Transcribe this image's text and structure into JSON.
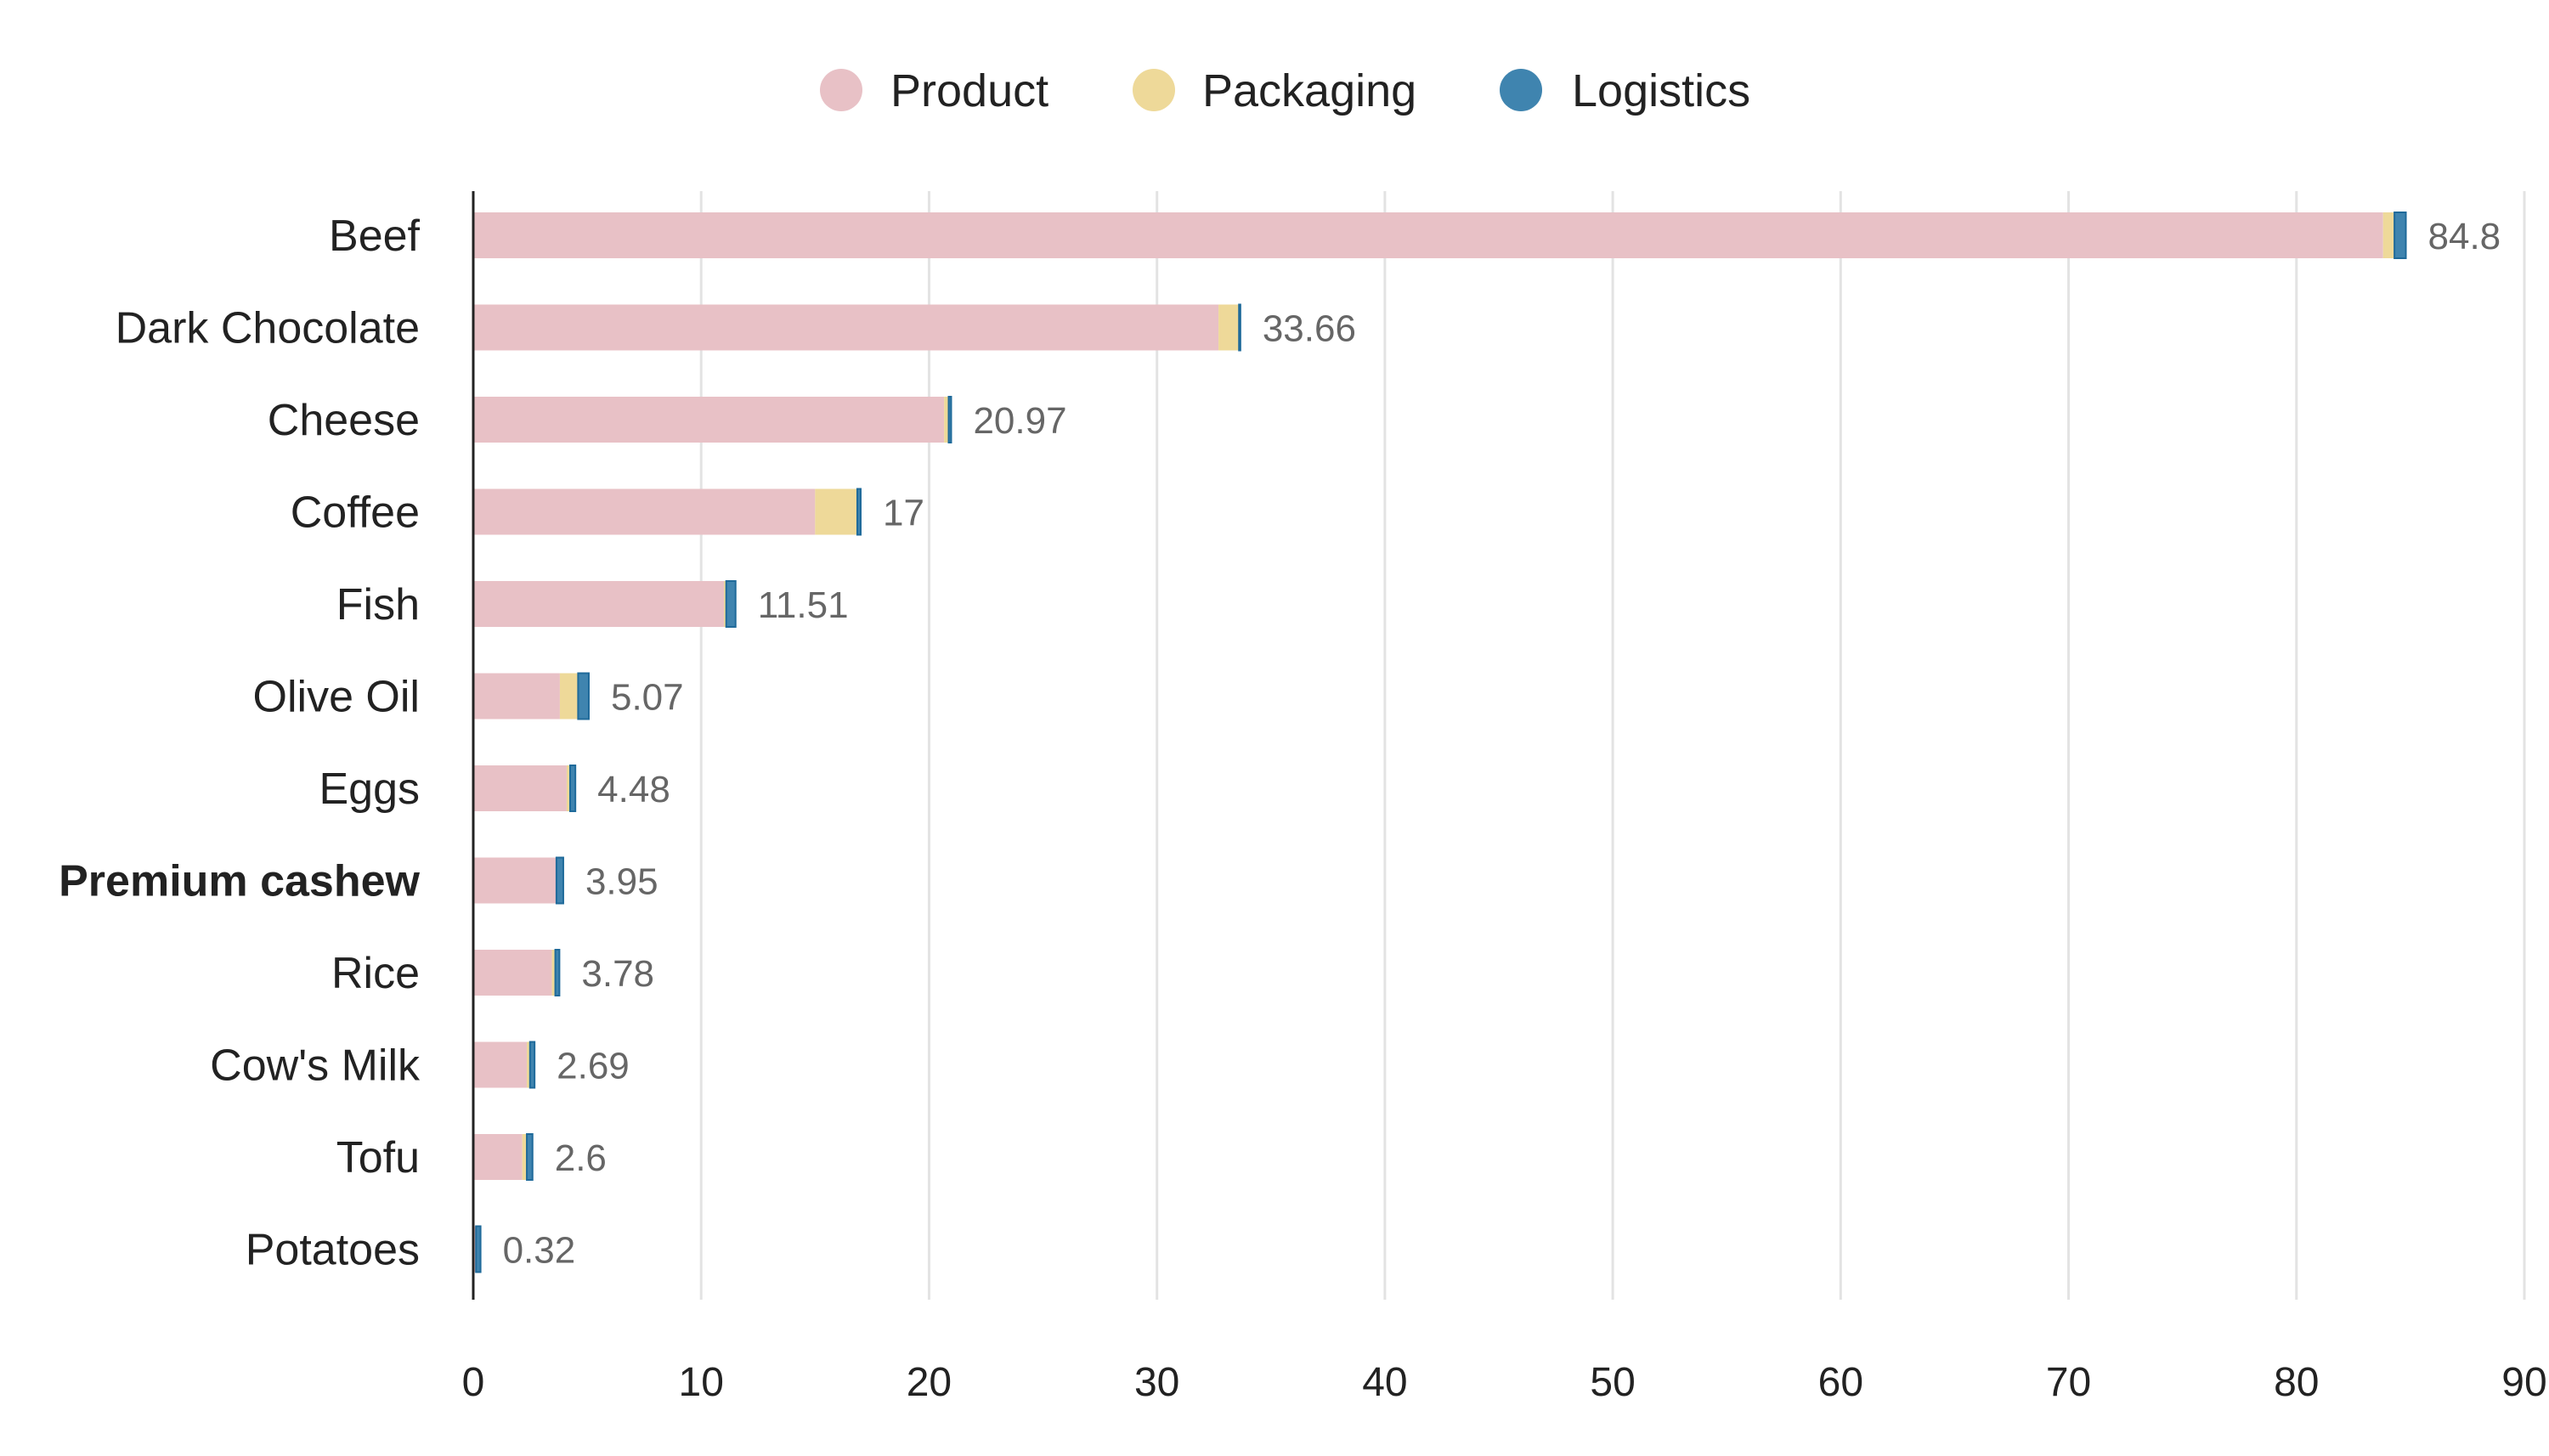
{
  "chart_data": {
    "type": "bar",
    "orientation": "horizontal",
    "stacked": true,
    "title": "",
    "xlabel": "",
    "ylabel": "",
    "xlim": [
      0,
      90
    ],
    "xticks": [
      0,
      10,
      20,
      30,
      40,
      50,
      60,
      70,
      80,
      90
    ],
    "grid": true,
    "legend_position": "top-center",
    "highlighted_category": "Premium cashew",
    "categories": [
      "Beef",
      "Dark Chocolate",
      "Cheese",
      "Coffee",
      "Fish",
      "Olive Oil",
      "Eggs",
      "Premium cashew",
      "Rice",
      "Cow's Milk",
      "Tofu",
      "Potatoes"
    ],
    "totals": [
      "84.8",
      "33.66",
      "20.97",
      "17",
      "11.51",
      "5.07",
      "4.48",
      "3.95",
      "3.78",
      "2.69",
      "2.6",
      "0.32"
    ],
    "series": [
      {
        "name": "Product",
        "color": "#e8c1c6",
        "values": [
          83.8,
          32.7,
          20.66,
          15.0,
          11.0,
          3.8,
          4.1,
          3.65,
          3.45,
          2.35,
          2.15,
          0.1
        ]
      },
      {
        "name": "Packaging",
        "color": "#eed999",
        "values": [
          0.5,
          0.9,
          0.2,
          1.85,
          0.1,
          0.8,
          0.15,
          0.0,
          0.15,
          0.14,
          0.2,
          0.02
        ]
      },
      {
        "name": "Logistics",
        "color": "#3f84af",
        "values": [
          0.5,
          0.06,
          0.11,
          0.15,
          0.41,
          0.47,
          0.23,
          0.3,
          0.18,
          0.2,
          0.25,
          0.2
        ]
      }
    ]
  }
}
